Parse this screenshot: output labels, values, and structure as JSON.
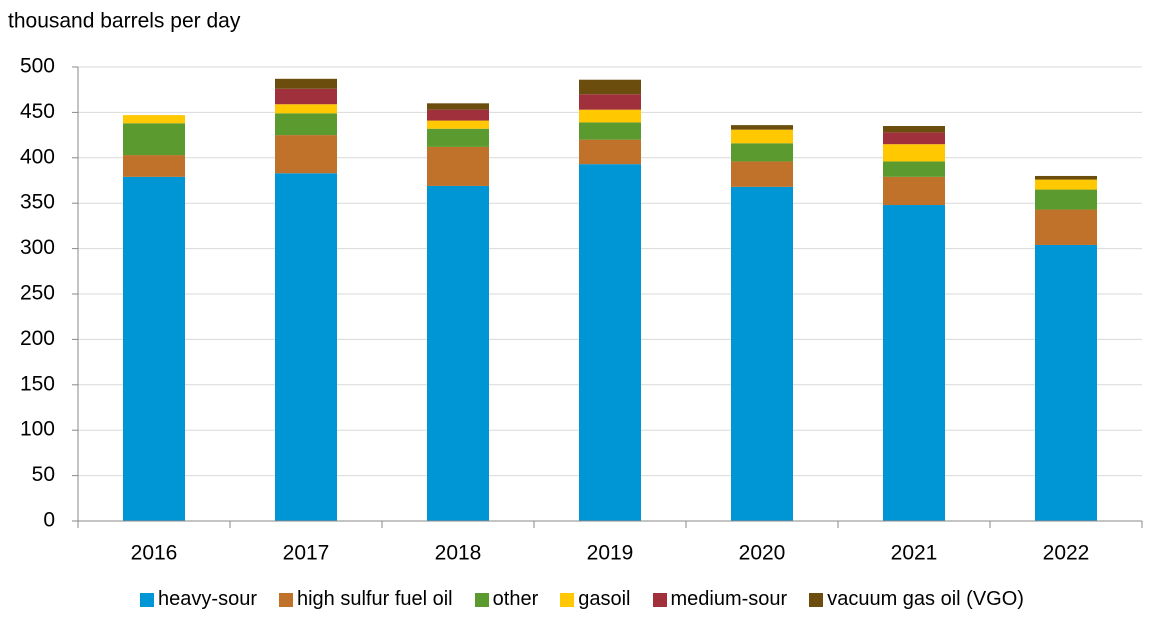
{
  "chart_data": {
    "type": "stacked_bar",
    "y_axis_label": "thousand barrels per day",
    "categories": [
      "2016",
      "2017",
      "2018",
      "2019",
      "2020",
      "2021",
      "2022"
    ],
    "series": [
      {
        "name": "heavy-sour",
        "color": "#0096d6",
        "values": [
          379,
          383,
          369,
          393,
          368,
          348,
          304
        ]
      },
      {
        "name": "high sulfur fuel oil",
        "color": "#c0722a",
        "values": [
          24,
          42,
          43,
          27,
          28,
          31,
          39
        ]
      },
      {
        "name": "other",
        "color": "#5a9a2e",
        "values": [
          35,
          24,
          20,
          19,
          20,
          17,
          22
        ]
      },
      {
        "name": "gasoil",
        "color": "#ffc800",
        "values": [
          9,
          10,
          9,
          14,
          15,
          19,
          11
        ]
      },
      {
        "name": "medium-sour",
        "color": "#a0303c",
        "values": [
          0,
          17,
          12,
          17,
          0,
          13,
          0
        ]
      },
      {
        "name": "vacuum gas oil (VGO)",
        "color": "#6b4d0e",
        "values": [
          0,
          11,
          7,
          16,
          5,
          7,
          4
        ]
      }
    ],
    "ylim": [
      0,
      500
    ],
    "yticks": [
      0,
      50,
      100,
      150,
      200,
      250,
      300,
      350,
      400,
      450,
      500
    ],
    "grid": true,
    "legend": "bottom"
  }
}
